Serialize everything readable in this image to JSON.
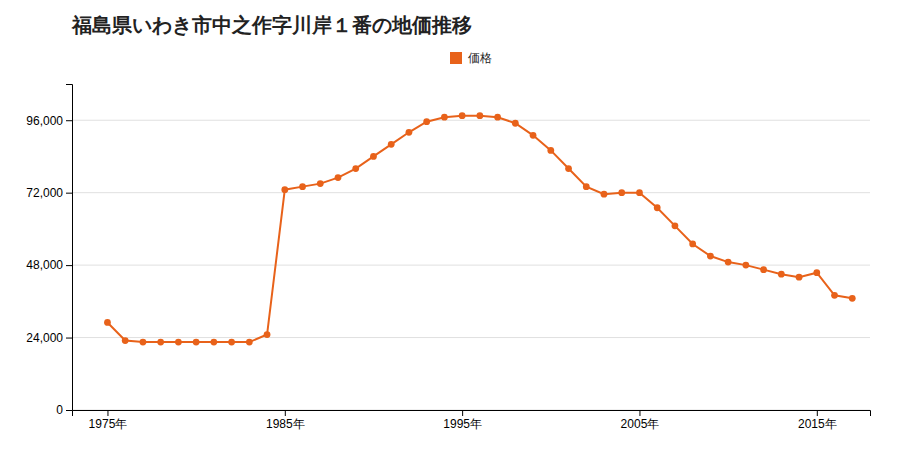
{
  "chart_data": {
    "type": "line",
    "title": "福島県いわき市中之作字川岸１番の地価推移",
    "x": [
      1975,
      1976,
      1977,
      1978,
      1979,
      1980,
      1981,
      1982,
      1983,
      1984,
      1985,
      1986,
      1987,
      1988,
      1989,
      1990,
      1991,
      1992,
      1993,
      1994,
      1995,
      1996,
      1997,
      1998,
      1999,
      2000,
      2001,
      2002,
      2003,
      2004,
      2005,
      2006,
      2007,
      2008,
      2009,
      2010,
      2011,
      2012,
      2013,
      2014,
      2015,
      2016,
      2017
    ],
    "series": [
      {
        "name": "価格",
        "color": "#e8621a",
        "marker": "circle",
        "values": [
          29000,
          23000,
          22500,
          22500,
          22500,
          22500,
          22500,
          22500,
          22500,
          25000,
          73000,
          74000,
          75000,
          77000,
          80000,
          84000,
          88000,
          92000,
          95500,
          97000,
          97500,
          97500,
          97000,
          95000,
          91000,
          86000,
          80000,
          74000,
          71500,
          72000,
          72000,
          67000,
          61000,
          55000,
          51000,
          49000,
          48000,
          46500,
          45000,
          44000,
          45500,
          38000,
          37000
        ]
      }
    ],
    "xlim": [
      1973,
      2018
    ],
    "xticks": [
      {
        "value": 1975,
        "label": "1975年"
      },
      {
        "value": 1985,
        "label": "1985年"
      },
      {
        "value": 1995,
        "label": "1995年"
      },
      {
        "value": 2005,
        "label": "2005年"
      },
      {
        "value": 2015,
        "label": "2015年"
      }
    ],
    "ylim": [
      0,
      108000
    ],
    "yticks": [
      0,
      {
        "value": 24000,
        "label": "24,000"
      },
      {
        "value": 48000,
        "label": "48,000"
      },
      {
        "value": 72000,
        "label": "72,000"
      },
      {
        "value": 96000,
        "label": "96,000"
      }
    ],
    "grid": true,
    "legend": "top"
  }
}
